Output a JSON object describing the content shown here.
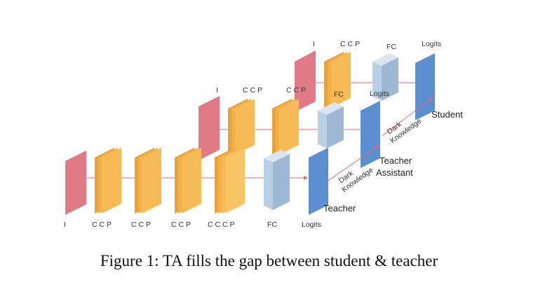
{
  "diagram": {
    "input_label": "I",
    "block_labels": {
      "ccp": "C C P",
      "cccp": "C C C P",
      "fc": "FC",
      "logits": "Logits"
    },
    "role_labels": {
      "student": "Student",
      "ta_line1": "Teacher",
      "ta_line2": "Assistant",
      "teacher": "Teacher"
    },
    "dark_knowledge": {
      "line1": "Dark",
      "line2": "Knowledge"
    },
    "colors": {
      "input": "#e07a85",
      "conv": "#f6bb57",
      "conv_dark": "#e8a23c",
      "fc": "#b9cfe6",
      "fc_dark": "#9db7d4",
      "logits": "#5b8fd0",
      "arrow": "#e46b76"
    }
  },
  "caption": "Figure 1: TA fills the gap between student & teacher"
}
